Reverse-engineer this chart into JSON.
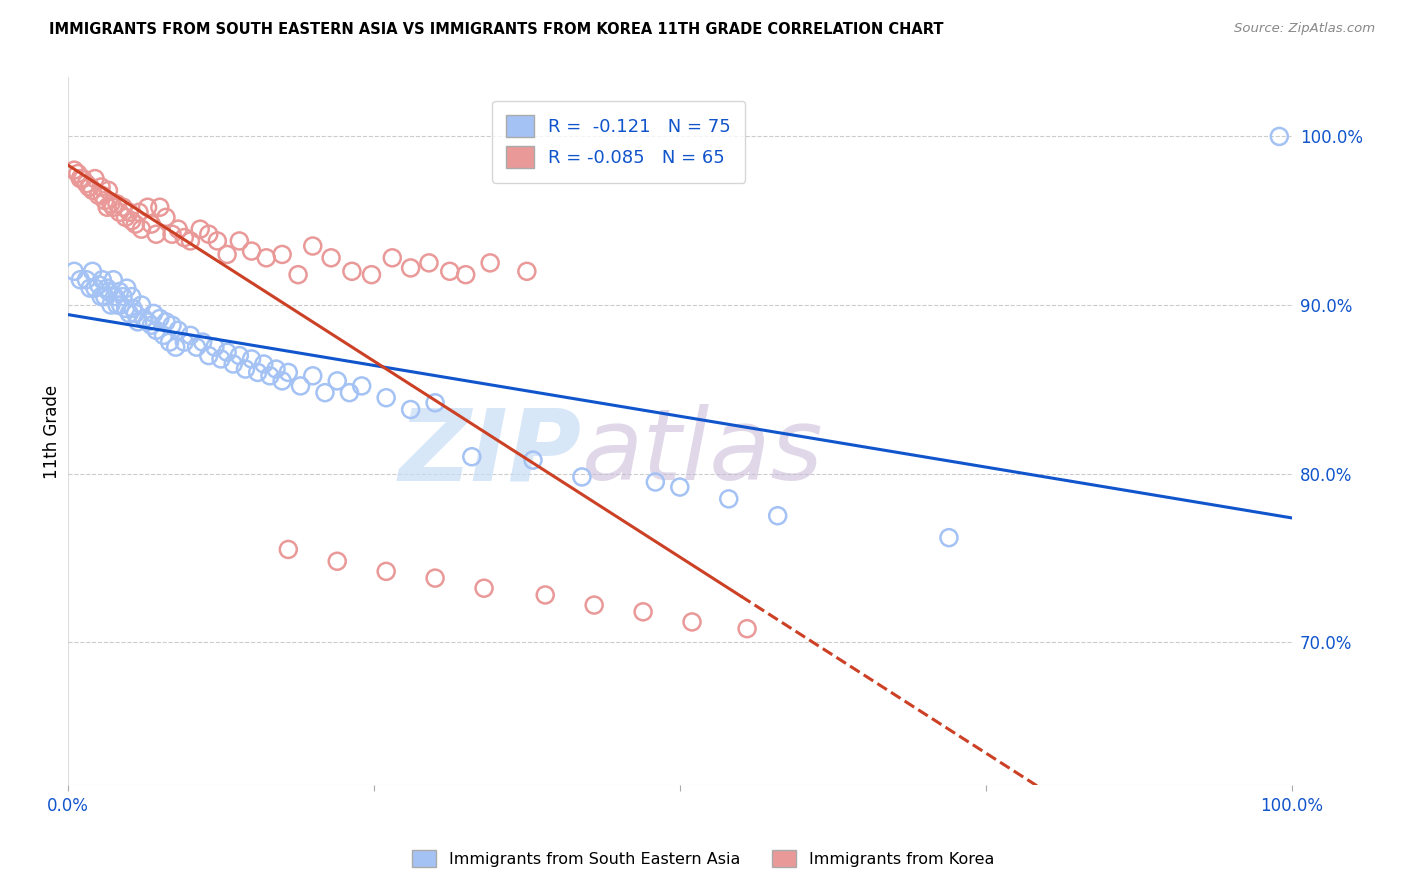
{
  "title": "IMMIGRANTS FROM SOUTH EASTERN ASIA VS IMMIGRANTS FROM KOREA 11TH GRADE CORRELATION CHART",
  "source_text": "Source: ZipAtlas.com",
  "ylabel": "11th Grade",
  "xlim": [
    0.0,
    1.0
  ],
  "ylim": [
    0.615,
    1.035
  ],
  "y_tick_labels_right": [
    "100.0%",
    "90.0%",
    "80.0%",
    "70.0%"
  ],
  "y_tick_values_right": [
    1.0,
    0.9,
    0.8,
    0.7
  ],
  "legend_r_blue": "-0.121",
  "legend_n_blue": "75",
  "legend_r_pink": "-0.085",
  "legend_n_pink": "65",
  "blue_color": "#a4c2f4",
  "pink_color": "#ea9999",
  "trendline_blue_color": "#1155cc",
  "trendline_pink_color": "#cc4125",
  "watermark_zip": "ZIP",
  "watermark_atlas": "atlas",
  "blue_x": [
    0.005,
    0.01,
    0.015,
    0.018,
    0.02,
    0.022,
    0.025,
    0.027,
    0.028,
    0.03,
    0.032,
    0.033,
    0.035,
    0.037,
    0.038,
    0.04,
    0.042,
    0.043,
    0.045,
    0.047,
    0.048,
    0.05,
    0.052,
    0.053,
    0.055,
    0.057,
    0.06,
    0.062,
    0.065,
    0.068,
    0.07,
    0.072,
    0.075,
    0.078,
    0.08,
    0.083,
    0.085,
    0.088,
    0.09,
    0.095,
    0.1,
    0.105,
    0.11,
    0.115,
    0.12,
    0.125,
    0.13,
    0.135,
    0.14,
    0.145,
    0.15,
    0.155,
    0.16,
    0.165,
    0.17,
    0.175,
    0.18,
    0.19,
    0.2,
    0.21,
    0.22,
    0.23,
    0.24,
    0.26,
    0.28,
    0.3,
    0.33,
    0.38,
    0.42,
    0.48,
    0.5,
    0.54,
    0.58,
    0.72,
    0.99
  ],
  "blue_y": [
    0.92,
    0.915,
    0.915,
    0.91,
    0.92,
    0.91,
    0.912,
    0.905,
    0.915,
    0.905,
    0.91,
    0.908,
    0.9,
    0.915,
    0.905,
    0.9,
    0.908,
    0.9,
    0.905,
    0.898,
    0.91,
    0.895,
    0.905,
    0.898,
    0.895,
    0.89,
    0.9,
    0.892,
    0.89,
    0.888,
    0.895,
    0.885,
    0.892,
    0.882,
    0.89,
    0.878,
    0.888,
    0.875,
    0.885,
    0.878,
    0.882,
    0.875,
    0.878,
    0.87,
    0.875,
    0.868,
    0.872,
    0.865,
    0.87,
    0.862,
    0.868,
    0.86,
    0.865,
    0.858,
    0.862,
    0.855,
    0.86,
    0.852,
    0.858,
    0.848,
    0.855,
    0.848,
    0.852,
    0.845,
    0.838,
    0.842,
    0.81,
    0.808,
    0.798,
    0.795,
    0.792,
    0.785,
    0.775,
    0.762,
    1.0
  ],
  "pink_x": [
    0.005,
    0.008,
    0.01,
    0.012,
    0.015,
    0.017,
    0.018,
    0.02,
    0.022,
    0.025,
    0.027,
    0.028,
    0.03,
    0.032,
    0.033,
    0.035,
    0.037,
    0.04,
    0.042,
    0.045,
    0.047,
    0.05,
    0.052,
    0.055,
    0.058,
    0.06,
    0.065,
    0.068,
    0.072,
    0.075,
    0.08,
    0.085,
    0.09,
    0.095,
    0.1,
    0.108,
    0.115,
    0.122,
    0.13,
    0.14,
    0.15,
    0.162,
    0.175,
    0.188,
    0.2,
    0.215,
    0.232,
    0.248,
    0.265,
    0.28,
    0.295,
    0.312,
    0.325,
    0.345,
    0.375,
    0.18,
    0.22,
    0.26,
    0.3,
    0.34,
    0.39,
    0.43,
    0.47,
    0.51,
    0.555
  ],
  "pink_y": [
    0.98,
    0.978,
    0.975,
    0.975,
    0.972,
    0.97,
    0.97,
    0.968,
    0.975,
    0.965,
    0.97,
    0.965,
    0.962,
    0.958,
    0.968,
    0.96,
    0.958,
    0.96,
    0.955,
    0.958,
    0.952,
    0.955,
    0.95,
    0.948,
    0.955,
    0.945,
    0.958,
    0.948,
    0.942,
    0.958,
    0.952,
    0.942,
    0.945,
    0.94,
    0.938,
    0.945,
    0.942,
    0.938,
    0.93,
    0.938,
    0.932,
    0.928,
    0.93,
    0.918,
    0.935,
    0.928,
    0.92,
    0.918,
    0.928,
    0.922,
    0.925,
    0.92,
    0.918,
    0.925,
    0.92,
    0.755,
    0.748,
    0.742,
    0.738,
    0.732,
    0.728,
    0.722,
    0.718,
    0.712,
    0.708
  ]
}
